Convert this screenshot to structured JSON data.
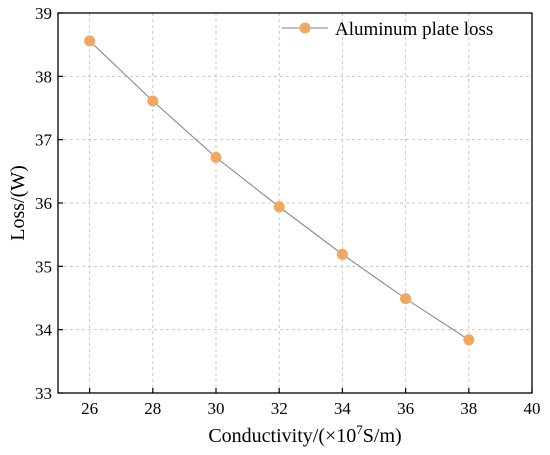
{
  "chart_data": {
    "type": "line",
    "xlabel_main": "Conductivity/(×10",
    "xlabel_sup": "7",
    "xlabel_tail": "S/m)",
    "ylabel": "Loss/(W)",
    "xlim": [
      25,
      40
    ],
    "ylim": [
      33,
      39
    ],
    "x_ticks": [
      "26",
      "28",
      "30",
      "32",
      "34",
      "36",
      "38",
      "40"
    ],
    "y_ticks": [
      "33",
      "34",
      "35",
      "36",
      "37",
      "38",
      "39"
    ],
    "grid": true,
    "legend_position": "top-right",
    "series": [
      {
        "name": "Aluminum plate loss",
        "color": "#f0a860",
        "line_color": "#808080",
        "marker": "circle",
        "x": [
          26,
          28,
          30,
          32,
          34,
          36,
          38
        ],
        "y": [
          38.56,
          37.61,
          36.72,
          35.94,
          35.19,
          34.49,
          33.84
        ]
      }
    ]
  }
}
